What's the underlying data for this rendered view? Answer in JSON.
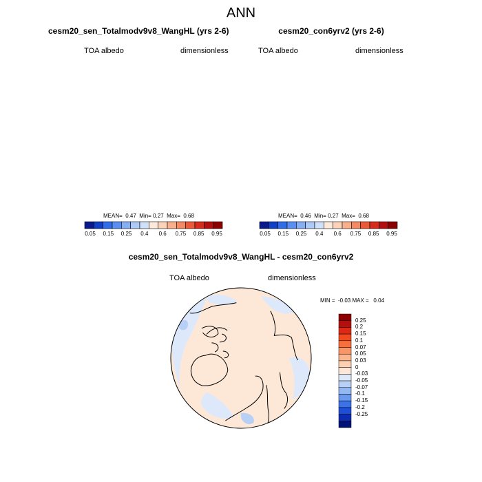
{
  "figure": {
    "title": "ANN"
  },
  "panels": {
    "left": {
      "title": "cesm20_sen_Totalmodv9v8_WangHL (yrs 2-6)",
      "variable": "TOA albedo",
      "units": "dimensionless",
      "stats": {
        "mean_label": "MEAN=",
        "mean": "0.47",
        "min_label": "Min=",
        "min": "0.27",
        "max_label": "Max=",
        "max": "0.68"
      }
    },
    "right": {
      "title": "cesm20_con6yrv2 (yrs 2-6)",
      "variable": "TOA albedo",
      "units": "dimensionless",
      "stats": {
        "mean_label": "MEAN=",
        "mean": "0.46",
        "min_label": "Min=",
        "min": "0.27",
        "max_label": "Max=",
        "max": "0.68"
      }
    },
    "diff": {
      "title": "cesm20_sen_Totalmodv9v8_WangHL - cesm20_con6yrv2",
      "variable": "TOA albedo",
      "units": "dimensionless",
      "stats": {
        "min_label": "MIN =",
        "min": "-0.03",
        "max_label": "MAX =",
        "max": "0.04"
      }
    }
  },
  "colorbars": {
    "abs": {
      "colors": [
        "#0a1a8c",
        "#1040c8",
        "#2f6ee8",
        "#5a8ef0",
        "#86aef2",
        "#adc9f6",
        "#cfe0f9",
        "#fdeadb",
        "#fcd3b8",
        "#f8b08c",
        "#f48a64",
        "#ea5a3a",
        "#d62a1a",
        "#b40f0f",
        "#8c0000"
      ],
      "ticks": [
        "0.05",
        "0.15",
        "0.25",
        "0.4",
        "0.6",
        "0.75",
        "0.85",
        "0.95"
      ]
    },
    "diff": {
      "colors": [
        "#8c0000",
        "#b40f0f",
        "#dc2814",
        "#f04a1e",
        "#f7703c",
        "#f99566",
        "#fbb68e",
        "#fdd0b2",
        "#fde8d8",
        "#dde9fb",
        "#b8d0f6",
        "#94b8f2",
        "#6a9af0",
        "#3a72ea",
        "#1e4ed8",
        "#0c2cb4",
        "#001478"
      ],
      "ticks": [
        "0.25",
        "0.2",
        "0.15",
        "0.1",
        "0.07",
        "0.05",
        "0.03",
        "0",
        "-0.03",
        "-0.05",
        "-0.07",
        "-0.1",
        "-0.15",
        "-0.2",
        "-0.25"
      ]
    }
  }
}
